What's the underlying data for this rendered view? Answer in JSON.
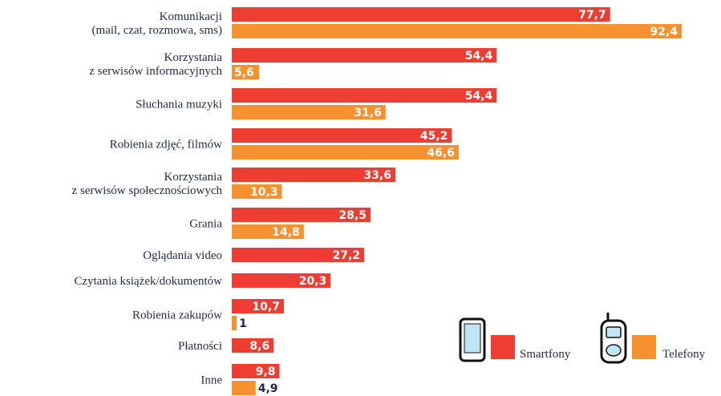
{
  "chart_data": {
    "type": "bar",
    "orientation": "horizontal",
    "categories": [
      [
        "Komunikacji",
        "(mail, czat, rozmowa, sms)"
      ],
      [
        "Korzystania",
        "z serwisów informacyjnych"
      ],
      [
        "Słuchania muzyki"
      ],
      [
        "Robienia zdjęć, filmów"
      ],
      [
        "Korzystania",
        "z serwisów społecznościowych"
      ],
      [
        "Grania"
      ],
      [
        "Oglądania video"
      ],
      [
        "Czytania książek/dokumentów"
      ],
      [
        "Robienia zakupów"
      ],
      [
        "Płatności"
      ],
      [
        "Inne"
      ]
    ],
    "series": [
      {
        "name": "Smartfony",
        "color": "#ee3e33",
        "values": [
          77.7,
          54.4,
          54.4,
          45.2,
          33.6,
          28.5,
          27.2,
          20.3,
          10.7,
          8.6,
          9.8
        ],
        "labels": [
          "77,7",
          "54,4",
          "54,4",
          "45,2",
          "33,6",
          "28,5",
          "27,2",
          "20,3",
          "10,7",
          "8,6",
          "9,8"
        ]
      },
      {
        "name": "Telefony",
        "color": "#f7902e",
        "values": [
          92.4,
          5.6,
          31.6,
          46.6,
          10.3,
          14.8,
          null,
          null,
          1,
          null,
          4.9
        ],
        "labels": [
          "92,4",
          "5,6",
          "31,6",
          "46,6",
          "10,3",
          "14,8",
          null,
          null,
          "1",
          null,
          "4,9"
        ]
      }
    ],
    "xlim": [
      0,
      92.4
    ],
    "grid": false,
    "legend": "bottom-right"
  },
  "legend": {
    "smartphone_icon": "smartphone-icon",
    "phone_icon": "flip-phone-icon"
  }
}
